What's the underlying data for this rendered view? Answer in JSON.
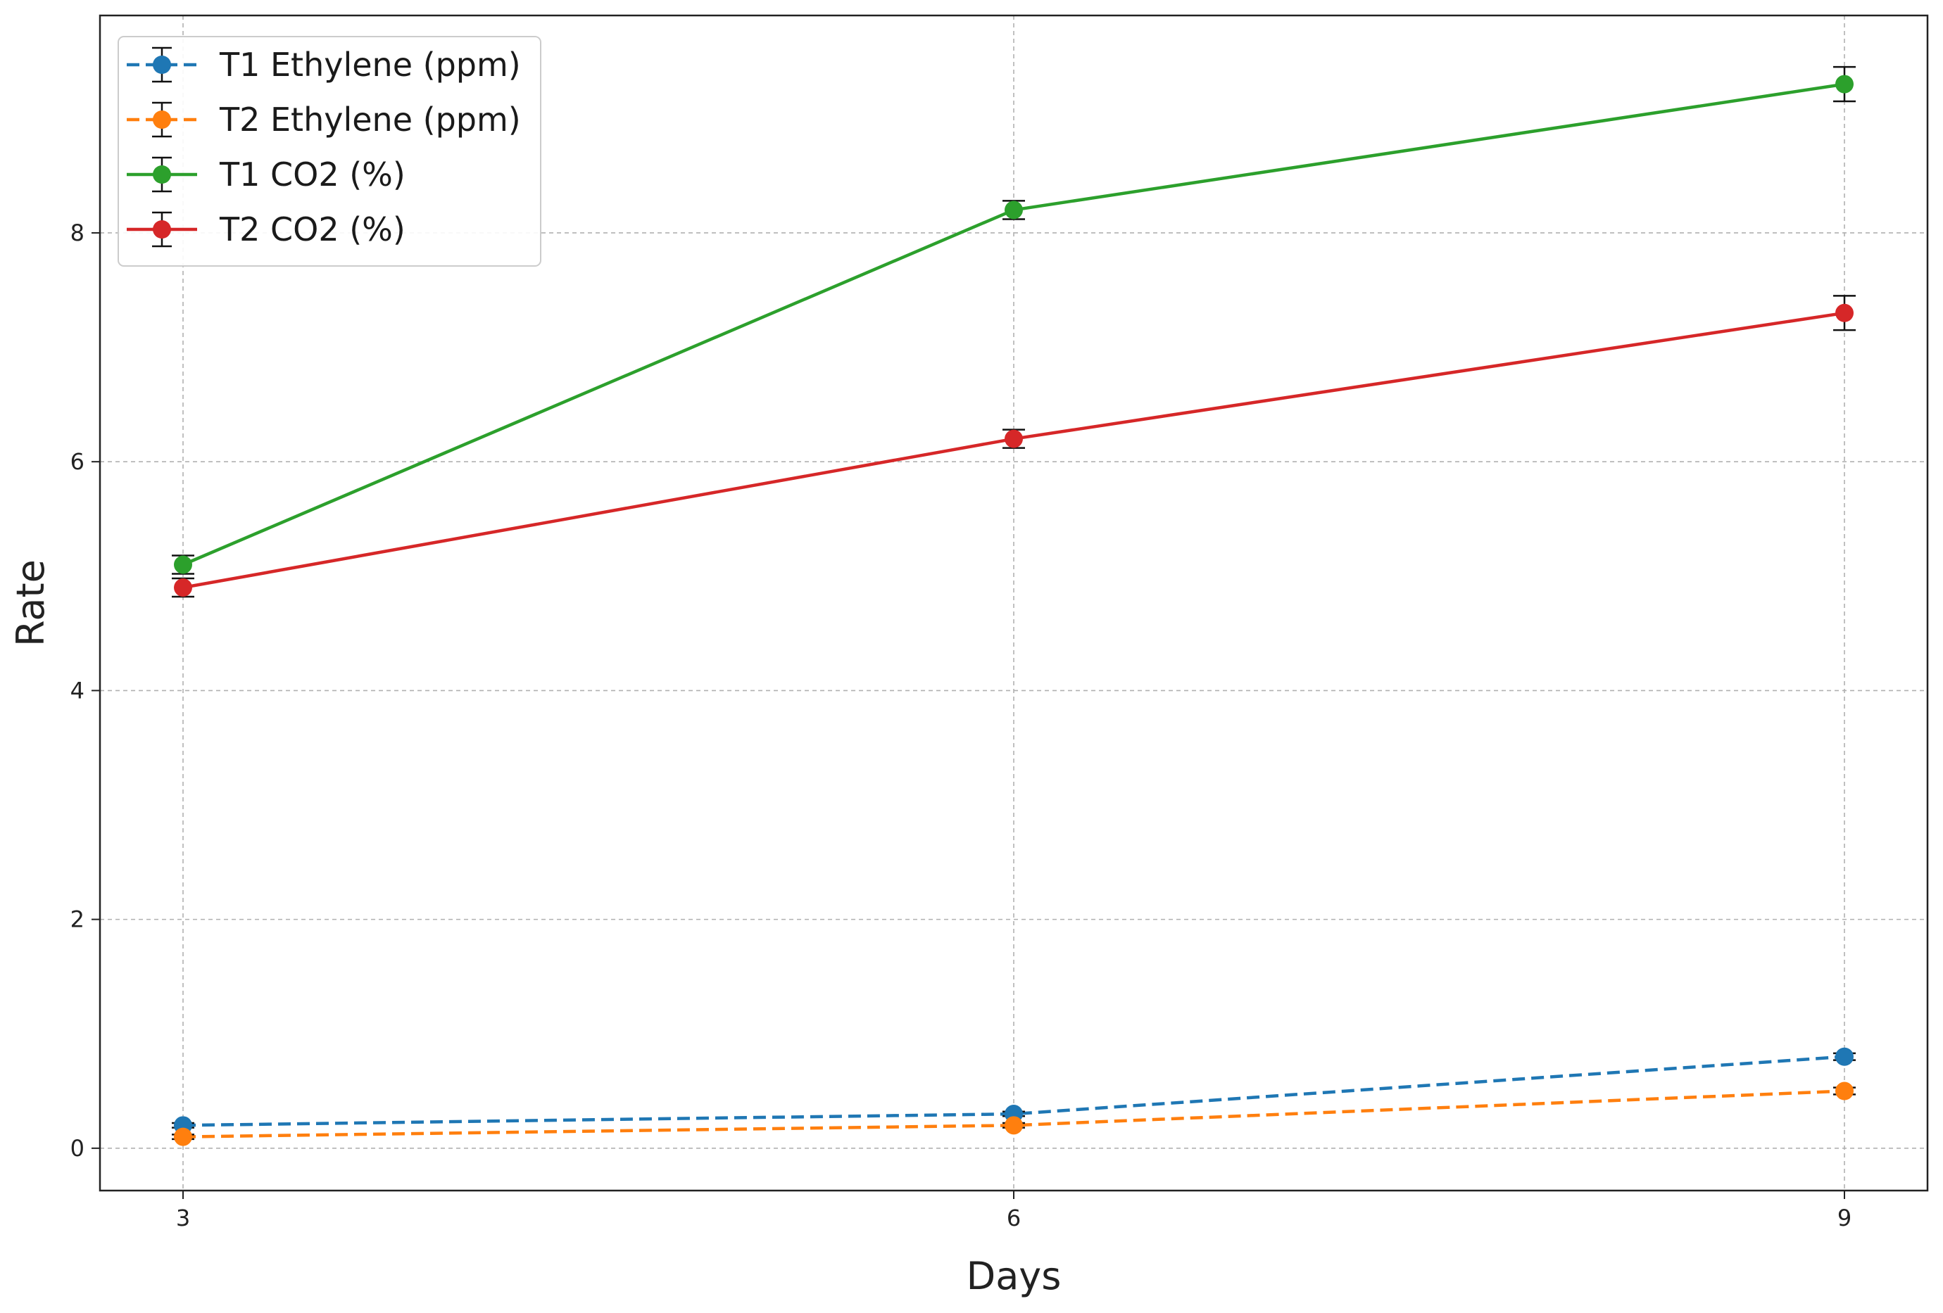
{
  "chart_data": {
    "type": "line",
    "title": "",
    "xlabel": "Days",
    "ylabel": "Rate",
    "x": [
      3,
      6,
      9
    ],
    "x_ticks": [
      "3",
      "6",
      "9"
    ],
    "y_ticks": [
      "0",
      "2",
      "4",
      "6",
      "8"
    ],
    "xlim": [
      2.7,
      9.3
    ],
    "ylim": [
      -0.37,
      9.9
    ],
    "grid": true,
    "legend_position": "top-left",
    "series": [
      {
        "name": "T1 Ethylene (ppm)",
        "values": [
          0.2,
          0.3,
          0.8
        ],
        "errors": [
          0.02,
          0.02,
          0.03
        ],
        "color": "#1f77b4",
        "style": "dashed"
      },
      {
        "name": "T2 Ethylene (ppm)",
        "values": [
          0.1,
          0.2,
          0.5
        ],
        "errors": [
          0.02,
          0.02,
          0.03
        ],
        "color": "#ff7f0e",
        "style": "dashed"
      },
      {
        "name": "T1 CO2 (%)",
        "values": [
          5.1,
          8.2,
          9.3
        ],
        "errors": [
          0.08,
          0.08,
          0.15
        ],
        "color": "#2ca02c",
        "style": "solid"
      },
      {
        "name": "T2 CO2 (%)",
        "values": [
          4.9,
          6.2,
          7.3
        ],
        "errors": [
          0.08,
          0.08,
          0.15
        ],
        "color": "#d62728",
        "style": "solid"
      }
    ]
  }
}
